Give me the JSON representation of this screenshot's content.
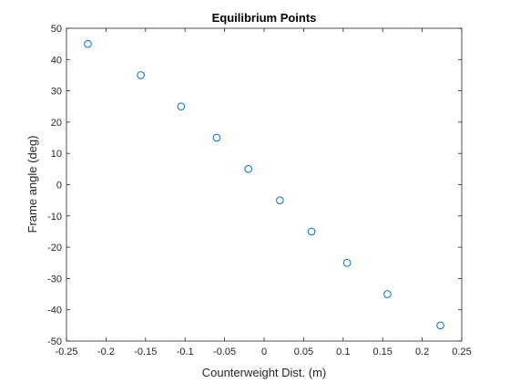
{
  "chart_data": {
    "type": "scatter",
    "title": "Equilibrium Points",
    "xlabel": "Counterweight Dist. (m)",
    "ylabel": "Frame angle (deg)",
    "xlim": [
      -0.25,
      0.25
    ],
    "ylim": [
      -50,
      50
    ],
    "xticks": [
      -0.25,
      -0.2,
      -0.15,
      -0.1,
      -0.05,
      0,
      0.05,
      0.1,
      0.15,
      0.2,
      0.25
    ],
    "xtick_labels": [
      "-0.25",
      "-0.2",
      "-0.15",
      "-0.1",
      "-0.05",
      "0",
      "0.05",
      "0.1",
      "0.15",
      "0.2",
      "0.25"
    ],
    "yticks": [
      -50,
      -40,
      -30,
      -20,
      -10,
      0,
      10,
      20,
      30,
      40,
      50
    ],
    "ytick_labels": [
      "-50",
      "-40",
      "-30",
      "-20",
      "-10",
      "0",
      "10",
      "20",
      "30",
      "40",
      "50"
    ],
    "grid": false,
    "marker": "open-circle",
    "marker_color": "#0072BD",
    "axis_color": "#262626",
    "series": [
      {
        "x": [
          -0.223,
          -0.156,
          -0.105,
          -0.06,
          -0.02,
          0.02,
          0.06,
          0.105,
          0.156,
          0.223
        ],
        "y": [
          45,
          35,
          25,
          15,
          5,
          -5,
          -15,
          -25,
          -35,
          -45
        ]
      }
    ]
  }
}
